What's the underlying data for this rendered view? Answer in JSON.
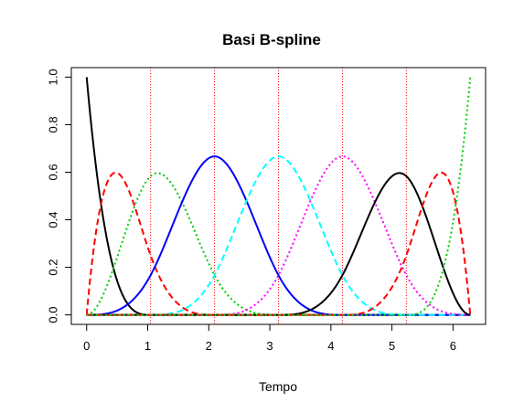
{
  "chart_data": {
    "type": "line",
    "title": "Basi B-spline",
    "xlabel": "Tempo",
    "ylabel": "",
    "xlim": [
      -0.251,
      6.534
    ],
    "ylim": [
      -0.04,
      1.04
    ],
    "x_ticks": [
      0,
      1,
      2,
      3,
      4,
      5,
      6
    ],
    "x_tick_labels": [
      "0",
      "1",
      "2",
      "3",
      "4",
      "5",
      "6"
    ],
    "y_ticks": [
      0.0,
      0.2,
      0.4,
      0.6,
      0.8,
      1.0
    ],
    "y_tick_labels": [
      "0.0",
      "0.2",
      "0.4",
      "0.6",
      "0.8",
      "1.0"
    ],
    "knots": [
      1.047,
      2.094,
      3.142,
      4.189,
      5.236
    ],
    "knot_line_color": "#ff0000",
    "spline_degree": 3,
    "boundary_knots": [
      0,
      6.283
    ],
    "series": [
      {
        "index": 1,
        "color": "#000000",
        "dash": "solid",
        "x": [
          0,
          0.2,
          0.4,
          0.6,
          0.8,
          1.0,
          1.047
        ],
        "y": [
          1.0,
          0.58,
          0.28,
          0.1,
          0.02,
          0.0,
          0.0
        ]
      },
      {
        "index": 2,
        "color": "#ff0000",
        "dash": "dashed",
        "x": [
          0,
          0.2,
          0.5,
          0.8,
          1.047,
          1.4,
          1.8,
          2.094
        ],
        "y": [
          0.0,
          0.43,
          0.6,
          0.45,
          0.25,
          0.08,
          0.01,
          0.0
        ]
      },
      {
        "index": 3,
        "color": "#00cd00",
        "dash": "dotted",
        "x": [
          0,
          0.5,
          1.047,
          1.2,
          1.6,
          2.094,
          2.6,
          3.142
        ],
        "y": [
          0.0,
          0.28,
          0.58,
          0.6,
          0.45,
          0.17,
          0.02,
          0.0
        ]
      },
      {
        "index": 4,
        "color": "#0000ff",
        "dash": "solid",
        "x": [
          0,
          1.047,
          2.094,
          3.142,
          4.189
        ],
        "y": [
          0.0,
          0.167,
          0.667,
          0.167,
          0.0
        ]
      },
      {
        "index": 5,
        "color": "#00ffff",
        "dash": "dashed",
        "x": [
          1.047,
          2.094,
          3.142,
          4.189,
          5.236
        ],
        "y": [
          0.0,
          0.167,
          0.667,
          0.167,
          0.0
        ]
      },
      {
        "index": 6,
        "color": "#ff00ff",
        "dash": "dotted",
        "x": [
          2.094,
          3.142,
          4.189,
          5.236,
          6.283
        ],
        "y": [
          0.0,
          0.167,
          0.667,
          0.167,
          0.0
        ]
      },
      {
        "index": 7,
        "color": "#000000",
        "dash": "solid",
        "x": [
          3.142,
          3.7,
          4.189,
          4.7,
          5.1,
          5.236,
          5.6,
          6.0,
          6.283
        ],
        "y": [
          0.0,
          0.03,
          0.17,
          0.45,
          0.6,
          0.58,
          0.4,
          0.15,
          0.0
        ]
      },
      {
        "index": 8,
        "color": "#ff0000",
        "dash": "dashed",
        "x": [
          4.189,
          4.6,
          5.0,
          5.236,
          5.5,
          5.8,
          6.1,
          6.283
        ],
        "y": [
          0.0,
          0.02,
          0.1,
          0.25,
          0.45,
          0.6,
          0.45,
          0.0
        ]
      },
      {
        "index": 9,
        "color": "#00cd00",
        "dash": "dotted",
        "x": [
          5.236,
          5.5,
          5.8,
          6.0,
          6.1,
          6.2,
          6.283
        ],
        "y": [
          0.0,
          0.02,
          0.1,
          0.3,
          0.45,
          0.7,
          1.0
        ]
      }
    ]
  }
}
